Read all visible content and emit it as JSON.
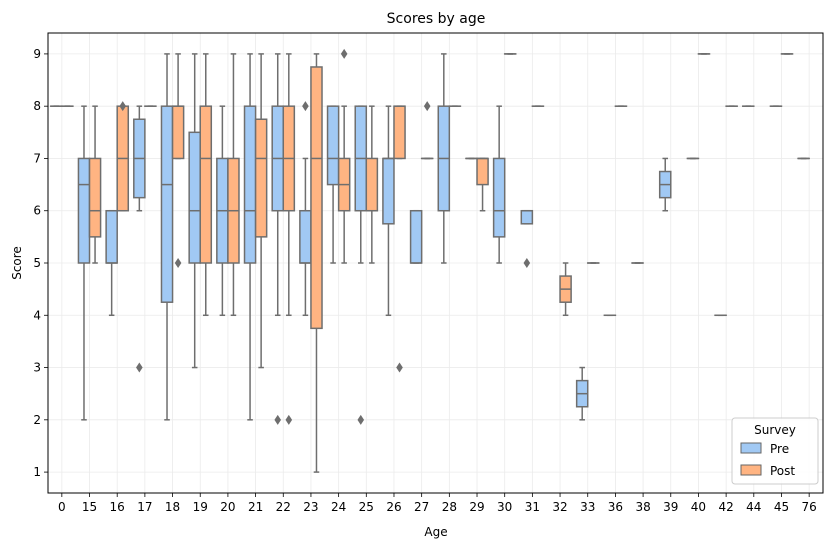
{
  "chart_data": {
    "type": "box",
    "title": "Scores by age",
    "xlabel": "Age",
    "ylabel": "Score",
    "ylim": [
      0.6,
      9.4
    ],
    "yticks": [
      1,
      2,
      3,
      4,
      5,
      6,
      7,
      8,
      9
    ],
    "grid": true,
    "legend": {
      "title": "Survey",
      "placement": "lower-right",
      "entries": [
        {
          "name": "Pre",
          "color": "#a1c9f4"
        },
        {
          "name": "Post",
          "color": "#ffb482"
        }
      ]
    },
    "categories": [
      "0",
      "15",
      "16",
      "17",
      "18",
      "19",
      "20",
      "21",
      "22",
      "23",
      "24",
      "25",
      "26",
      "27",
      "28",
      "29",
      "30",
      "31",
      "32",
      "33",
      "36",
      "38",
      "39",
      "40",
      "42",
      "44",
      "45",
      "76"
    ],
    "series": [
      {
        "name": "Pre",
        "color": "#a1c9f4",
        "boxes": [
          {
            "category": "0",
            "min": 8,
            "q1": 8,
            "median": 8,
            "q3": 8,
            "max": 8,
            "outliers": []
          },
          {
            "category": "15",
            "min": 2,
            "q1": 5,
            "median": 6.5,
            "q3": 7,
            "max": 8,
            "outliers": []
          },
          {
            "category": "16",
            "min": 4,
            "q1": 5,
            "median": 5,
            "q3": 6,
            "max": 6,
            "outliers": []
          },
          {
            "category": "17",
            "min": 6,
            "q1": 6.25,
            "median": 7,
            "q3": 7.75,
            "max": 8,
            "outliers": [
              3
            ]
          },
          {
            "category": "18",
            "min": 2,
            "q1": 4.25,
            "median": 6.5,
            "q3": 8,
            "max": 9,
            "outliers": []
          },
          {
            "category": "19",
            "min": 3,
            "q1": 5,
            "median": 6,
            "q3": 7.5,
            "max": 9,
            "outliers": []
          },
          {
            "category": "20",
            "min": 4,
            "q1": 5,
            "median": 6,
            "q3": 7,
            "max": 8,
            "outliers": []
          },
          {
            "category": "21",
            "min": 2,
            "q1": 5,
            "median": 6,
            "q3": 8,
            "max": 9,
            "outliers": []
          },
          {
            "category": "22",
            "min": 4,
            "q1": 6,
            "median": 7,
            "q3": 8,
            "max": 9,
            "outliers": [
              2
            ]
          },
          {
            "category": "23",
            "min": 4,
            "q1": 5,
            "median": 5,
            "q3": 6,
            "max": 7,
            "outliers": [
              8
            ]
          },
          {
            "category": "24",
            "min": 5,
            "q1": 6.5,
            "median": 7,
            "q3": 8,
            "max": 8,
            "outliers": []
          },
          {
            "category": "25",
            "min": 5,
            "q1": 6,
            "median": 7,
            "q3": 8,
            "max": 8,
            "outliers": [
              2
            ]
          },
          {
            "category": "26",
            "min": 4,
            "q1": 5.75,
            "median": 7,
            "q3": 7,
            "max": 8,
            "outliers": []
          },
          {
            "category": "27",
            "min": 5,
            "q1": 5,
            "median": 5,
            "q3": 6,
            "max": 6,
            "outliers": []
          },
          {
            "category": "28",
            "min": 5,
            "q1": 6,
            "median": 7,
            "q3": 8,
            "max": 9,
            "outliers": []
          },
          {
            "category": "29",
            "min": 7,
            "q1": 7,
            "median": 7,
            "q3": 7,
            "max": 7,
            "outliers": []
          },
          {
            "category": "30",
            "min": 5,
            "q1": 5.5,
            "median": 6,
            "q3": 7,
            "max": 8,
            "outliers": []
          },
          {
            "category": "31",
            "min": 5.75,
            "q1": 5.75,
            "median": 6,
            "q3": 6,
            "max": 6,
            "outliers": [
              5
            ]
          },
          {
            "category": "33",
            "min": 2,
            "q1": 2.25,
            "median": 2.5,
            "q3": 2.75,
            "max": 3,
            "outliers": []
          },
          {
            "category": "36",
            "min": 4,
            "q1": 4,
            "median": 4,
            "q3": 4,
            "max": 4,
            "outliers": []
          },
          {
            "category": "38",
            "min": 5,
            "q1": 5,
            "median": 5,
            "q3": 5,
            "max": 5,
            "outliers": []
          },
          {
            "category": "39",
            "min": 6,
            "q1": 6.25,
            "median": 6.5,
            "q3": 6.75,
            "max": 7,
            "outliers": []
          },
          {
            "category": "40",
            "min": 7,
            "q1": 7,
            "median": 7,
            "q3": 7,
            "max": 7,
            "outliers": []
          },
          {
            "category": "44",
            "min": 8,
            "q1": 8,
            "median": 8,
            "q3": 8,
            "max": 8,
            "outliers": []
          },
          {
            "category": "45",
            "min": 8,
            "q1": 8,
            "median": 8,
            "q3": 8,
            "max": 8,
            "outliers": []
          },
          {
            "category": "76",
            "min": 7,
            "q1": 7,
            "median": 7,
            "q3": 7,
            "max": 7,
            "outliers": []
          }
        ]
      },
      {
        "name": "Post",
        "color": "#ffb482",
        "boxes": [
          {
            "category": "0",
            "min": 8,
            "q1": 8,
            "median": 8,
            "q3": 8,
            "max": 8,
            "outliers": []
          },
          {
            "category": "15",
            "min": 5,
            "q1": 5.5,
            "median": 6,
            "q3": 7,
            "max": 8,
            "outliers": []
          },
          {
            "category": "16",
            "min": 6,
            "q1": 6,
            "median": 7,
            "q3": 8,
            "max": 8,
            "outliers": [
              8
            ]
          },
          {
            "category": "17",
            "min": 8,
            "q1": 8,
            "median": 8,
            "q3": 8,
            "max": 8,
            "outliers": []
          },
          {
            "category": "18",
            "min": 7,
            "q1": 7,
            "median": 8,
            "q3": 8,
            "max": 9,
            "outliers": [
              5
            ]
          },
          {
            "category": "19",
            "min": 4,
            "q1": 5,
            "median": 7,
            "q3": 8,
            "max": 9,
            "outliers": []
          },
          {
            "category": "20",
            "min": 4,
            "q1": 5,
            "median": 6,
            "q3": 7,
            "max": 9,
            "outliers": []
          },
          {
            "category": "21",
            "min": 3,
            "q1": 5.5,
            "median": 7,
            "q3": 7.75,
            "max": 9,
            "outliers": []
          },
          {
            "category": "22",
            "min": 4,
            "q1": 6,
            "median": 7,
            "q3": 8,
            "max": 9,
            "outliers": [
              2
            ]
          },
          {
            "category": "23",
            "min": 1,
            "q1": 3.75,
            "median": 7,
            "q3": 8.75,
            "max": 9,
            "outliers": []
          },
          {
            "category": "24",
            "min": 5,
            "q1": 6,
            "median": 6.5,
            "q3": 7,
            "max": 8,
            "outliers": [
              9
            ]
          },
          {
            "category": "25",
            "min": 5,
            "q1": 6,
            "median": 6,
            "q3": 7,
            "max": 8,
            "outliers": []
          },
          {
            "category": "26",
            "min": 7,
            "q1": 7,
            "median": 8,
            "q3": 8,
            "max": 8,
            "outliers": [
              3
            ]
          },
          {
            "category": "27",
            "min": 7,
            "q1": 7,
            "median": 7,
            "q3": 7,
            "max": 7,
            "outliers": [
              8
            ]
          },
          {
            "category": "28",
            "min": 8,
            "q1": 8,
            "median": 8,
            "q3": 8,
            "max": 8,
            "outliers": []
          },
          {
            "category": "29",
            "min": 6,
            "q1": 6.5,
            "median": 7,
            "q3": 7,
            "max": 7,
            "outliers": []
          },
          {
            "category": "30",
            "min": 9,
            "q1": 9,
            "median": 9,
            "q3": 9,
            "max": 9,
            "outliers": []
          },
          {
            "category": "31",
            "min": 8,
            "q1": 8,
            "median": 8,
            "q3": 8,
            "max": 8,
            "outliers": []
          },
          {
            "category": "32",
            "min": 4,
            "q1": 4.25,
            "median": 4.5,
            "q3": 4.75,
            "max": 5,
            "outliers": []
          },
          {
            "category": "33",
            "min": 5,
            "q1": 5,
            "median": 5,
            "q3": 5,
            "max": 5,
            "outliers": []
          },
          {
            "category": "36",
            "min": 8,
            "q1": 8,
            "median": 8,
            "q3": 8,
            "max": 8,
            "outliers": []
          },
          {
            "category": "40",
            "min": 9,
            "q1": 9,
            "median": 9,
            "q3": 9,
            "max": 9,
            "outliers": []
          },
          {
            "category": "42",
            "min": 8,
            "q1": 8,
            "median": 8,
            "q3": 8,
            "max": 8,
            "outliers": []
          },
          {
            "category": "45",
            "min": 9,
            "q1": 9,
            "median": 9,
            "q3": 9,
            "max": 9,
            "outliers": []
          }
        ]
      },
      {
        "name": "",
        "color": "#a1c9f4",
        "boxes": [
          {
            "category": "42",
            "min": 4,
            "q1": 4,
            "median": 4,
            "q3": 4,
            "max": 4,
            "outliers": []
          }
        ]
      }
    ]
  }
}
